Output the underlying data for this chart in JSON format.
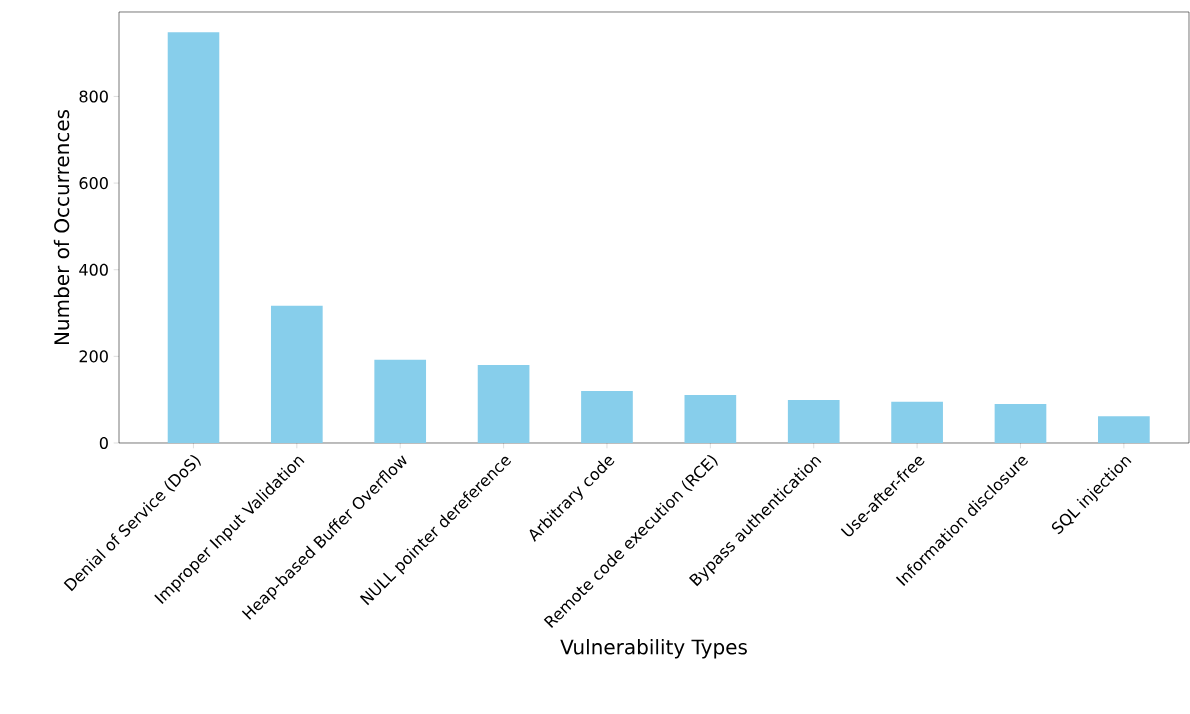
{
  "chart_data": {
    "type": "bar",
    "xlabel": "Vulnerability Types",
    "ylabel": "Number of Occurrences",
    "categories": [
      "Denial of Service (DoS)",
      "Improper Input Validation",
      "Heap-based Buffer Overflow",
      "NULL pointer dereference",
      "Arbitrary code",
      "Remote code execution (RCE)",
      "Bypass authentication",
      "Use-after-free",
      "Information disclosure",
      "SQL injection"
    ],
    "values": [
      948,
      317,
      192,
      180,
      120,
      111,
      99,
      95,
      90,
      62
    ],
    "color": "#87ceeb",
    "ylim": [
      0,
      995
    ],
    "yticks": [
      0,
      200,
      400,
      600,
      800
    ]
  }
}
